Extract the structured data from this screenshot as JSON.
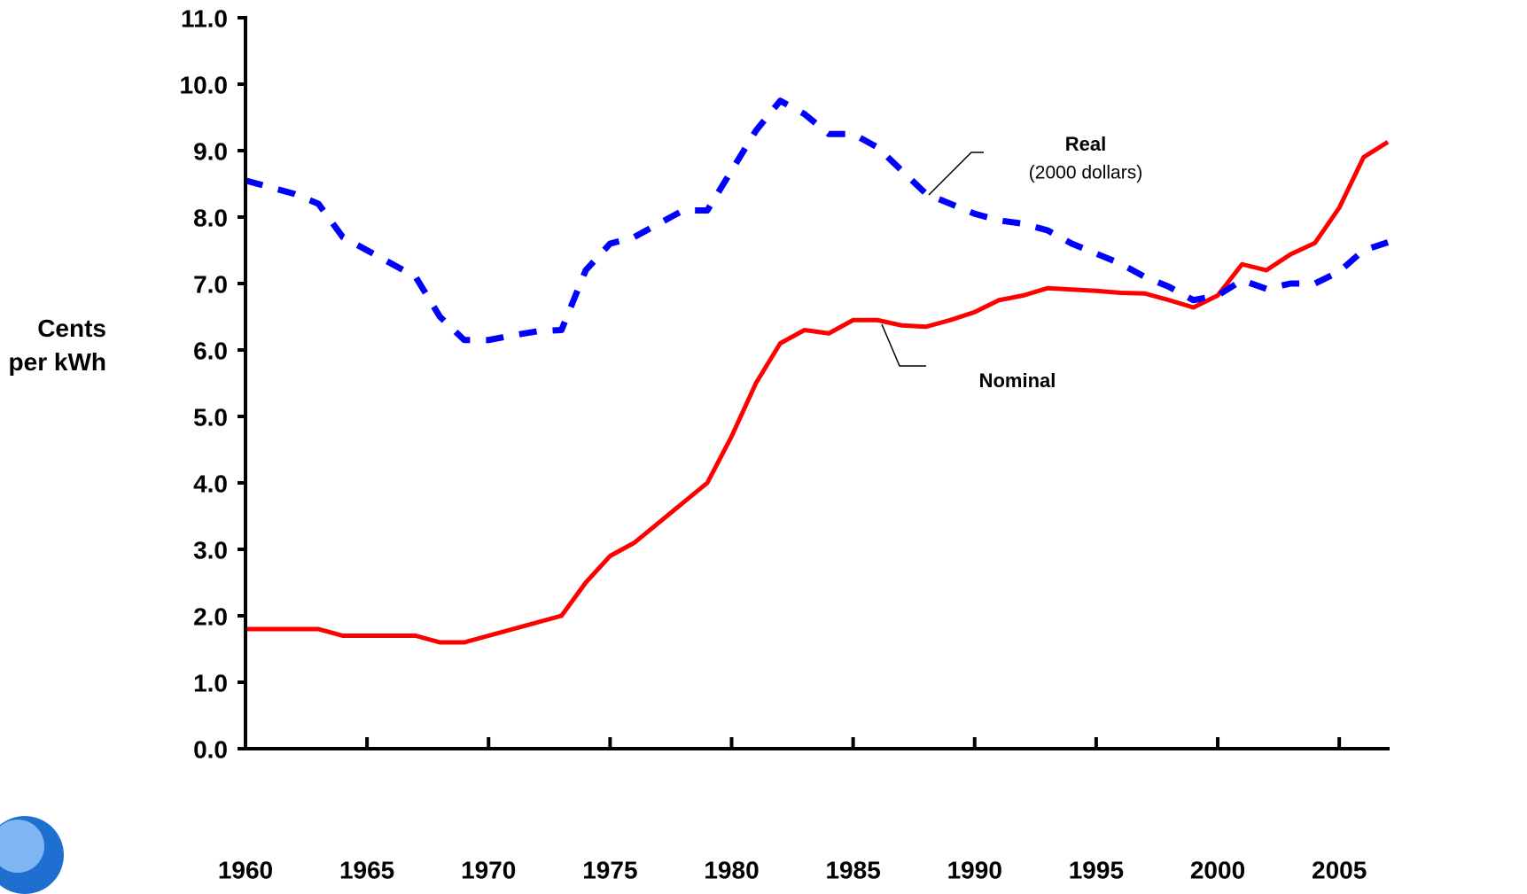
{
  "chart_data": {
    "type": "line",
    "y_label": "Cents per kWh",
    "annotations": [
      "Real",
      "(2000 dollars)",
      "Nominal"
    ],
    "x": [
      1960,
      1961,
      1962,
      1963,
      1964,
      1965,
      1966,
      1967,
      1968,
      1969,
      1970,
      1971,
      1972,
      1973,
      1974,
      1975,
      1976,
      1977,
      1978,
      1979,
      1980,
      1981,
      1982,
      1983,
      1984,
      1985,
      1986,
      1987,
      1988,
      1989,
      1990,
      1991,
      1992,
      1993,
      1994,
      1995,
      1996,
      1997,
      1998,
      1999,
      2000,
      2001,
      2002,
      2003,
      2004,
      2005,
      2006,
      2007
    ],
    "series": [
      {
        "name": "Nominal",
        "color": "#ff0000",
        "dashed": false,
        "values": [
          1.8,
          1.8,
          1.8,
          1.8,
          1.7,
          1.7,
          1.7,
          1.7,
          1.6,
          1.6,
          1.7,
          1.8,
          1.9,
          2.0,
          2.5,
          2.9,
          3.1,
          3.4,
          3.7,
          4.0,
          4.7,
          5.5,
          6.1,
          6.3,
          6.25,
          6.45,
          6.45,
          6.37,
          6.35,
          6.45,
          6.57,
          6.75,
          6.82,
          6.93,
          6.91,
          6.89,
          6.86,
          6.85,
          6.75,
          6.64,
          6.82,
          7.29,
          7.2,
          7.44,
          7.61,
          8.14,
          8.9,
          9.13
        ]
      },
      {
        "name": "Real",
        "color": "#0000ff",
        "dashed": true,
        "values": [
          8.55,
          8.45,
          8.35,
          8.2,
          7.7,
          7.5,
          7.3,
          7.1,
          6.5,
          6.15,
          6.15,
          6.22,
          6.28,
          6.3,
          7.2,
          7.6,
          7.7,
          7.9,
          8.1,
          8.1,
          8.7,
          9.3,
          9.75,
          9.55,
          9.25,
          9.25,
          9.05,
          8.7,
          8.35,
          8.2,
          8.05,
          7.95,
          7.9,
          7.8,
          7.6,
          7.45,
          7.3,
          7.1,
          6.95,
          6.75,
          6.82,
          7.05,
          6.92,
          7.0,
          7.0,
          7.18,
          7.5,
          7.62
        ]
      }
    ],
    "xlim": [
      1960,
      2007
    ],
    "xticks": [
      1960,
      1965,
      1970,
      1975,
      1980,
      1985,
      1990,
      1995,
      2000,
      2005
    ],
    "ylim": [
      0,
      11
    ],
    "yticks": [
      {
        "value": 0,
        "label": "0.0"
      },
      {
        "value": 1,
        "label": "1.0"
      },
      {
        "value": 2,
        "label": "2.0"
      },
      {
        "value": 3,
        "label": "3.0"
      },
      {
        "value": 4,
        "label": "4.0"
      },
      {
        "value": 5,
        "label": "5.0"
      },
      {
        "value": 6,
        "label": "6.0"
      },
      {
        "value": 7,
        "label": "7.0"
      },
      {
        "value": 8,
        "label": "8.0"
      },
      {
        "value": 9,
        "label": "9.0"
      },
      {
        "value": 10,
        "label": "10.0"
      },
      {
        "value": 11,
        "label": "11.0"
      }
    ],
    "grid": false
  }
}
